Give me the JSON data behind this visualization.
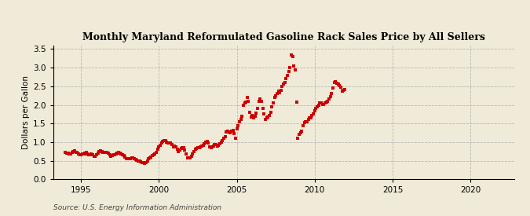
{
  "title": "Monthly Maryland Reformulated Gasoline Rack Sales Price by All Sellers",
  "ylabel": "Dollars per Gallon",
  "source": "Source: U.S. Energy Information Administration",
  "background_color": "#f0ead8",
  "plot_bg_color": "#f0ead8",
  "marker_color": "#cc0000",
  "xlim": [
    1993.2,
    2022.8
  ],
  "ylim": [
    0.0,
    3.6
  ],
  "yticks": [
    0.0,
    0.5,
    1.0,
    1.5,
    2.0,
    2.5,
    3.0,
    3.5
  ],
  "xticks": [
    1995,
    2000,
    2005,
    2010,
    2015,
    2020
  ],
  "data": [
    [
      1994.0,
      0.72
    ],
    [
      1994.083,
      0.71
    ],
    [
      1994.167,
      0.7
    ],
    [
      1994.25,
      0.68
    ],
    [
      1994.333,
      0.68
    ],
    [
      1994.417,
      0.72
    ],
    [
      1994.5,
      0.75
    ],
    [
      1994.583,
      0.76
    ],
    [
      1994.667,
      0.73
    ],
    [
      1994.75,
      0.72
    ],
    [
      1994.833,
      0.68
    ],
    [
      1994.917,
      0.66
    ],
    [
      1995.0,
      0.66
    ],
    [
      1995.083,
      0.68
    ],
    [
      1995.167,
      0.68
    ],
    [
      1995.25,
      0.7
    ],
    [
      1995.333,
      0.72
    ],
    [
      1995.417,
      0.68
    ],
    [
      1995.5,
      0.65
    ],
    [
      1995.583,
      0.67
    ],
    [
      1995.667,
      0.68
    ],
    [
      1995.75,
      0.65
    ],
    [
      1995.833,
      0.62
    ],
    [
      1995.917,
      0.62
    ],
    [
      1996.0,
      0.65
    ],
    [
      1996.083,
      0.7
    ],
    [
      1996.167,
      0.75
    ],
    [
      1996.25,
      0.77
    ],
    [
      1996.333,
      0.75
    ],
    [
      1996.417,
      0.73
    ],
    [
      1996.5,
      0.72
    ],
    [
      1996.583,
      0.73
    ],
    [
      1996.667,
      0.72
    ],
    [
      1996.75,
      0.7
    ],
    [
      1996.833,
      0.66
    ],
    [
      1996.917,
      0.62
    ],
    [
      1997.0,
      0.63
    ],
    [
      1997.083,
      0.65
    ],
    [
      1997.167,
      0.67
    ],
    [
      1997.25,
      0.68
    ],
    [
      1997.333,
      0.7
    ],
    [
      1997.417,
      0.72
    ],
    [
      1997.5,
      0.7
    ],
    [
      1997.583,
      0.68
    ],
    [
      1997.667,
      0.67
    ],
    [
      1997.75,
      0.64
    ],
    [
      1997.833,
      0.6
    ],
    [
      1997.917,
      0.56
    ],
    [
      1998.0,
      0.55
    ],
    [
      1998.083,
      0.55
    ],
    [
      1998.167,
      0.56
    ],
    [
      1998.25,
      0.57
    ],
    [
      1998.333,
      0.57
    ],
    [
      1998.417,
      0.56
    ],
    [
      1998.5,
      0.54
    ],
    [
      1998.583,
      0.52
    ],
    [
      1998.667,
      0.5
    ],
    [
      1998.75,
      0.49
    ],
    [
      1998.833,
      0.48
    ],
    [
      1998.917,
      0.45
    ],
    [
      1999.0,
      0.44
    ],
    [
      1999.083,
      0.43
    ],
    [
      1999.167,
      0.44
    ],
    [
      1999.25,
      0.5
    ],
    [
      1999.333,
      0.55
    ],
    [
      1999.417,
      0.58
    ],
    [
      1999.5,
      0.6
    ],
    [
      1999.583,
      0.63
    ],
    [
      1999.667,
      0.65
    ],
    [
      1999.75,
      0.68
    ],
    [
      1999.833,
      0.72
    ],
    [
      1999.917,
      0.8
    ],
    [
      2000.0,
      0.88
    ],
    [
      2000.083,
      0.92
    ],
    [
      2000.167,
      0.98
    ],
    [
      2000.25,
      1.02
    ],
    [
      2000.333,
      1.05
    ],
    [
      2000.417,
      1.03
    ],
    [
      2000.5,
      1.0
    ],
    [
      2000.583,
      0.97
    ],
    [
      2000.667,
      0.98
    ],
    [
      2000.75,
      0.98
    ],
    [
      2000.833,
      0.93
    ],
    [
      2000.917,
      0.88
    ],
    [
      2001.0,
      0.9
    ],
    [
      2001.083,
      0.88
    ],
    [
      2001.167,
      0.8
    ],
    [
      2001.25,
      0.75
    ],
    [
      2001.333,
      0.78
    ],
    [
      2001.417,
      0.82
    ],
    [
      2001.5,
      0.85
    ],
    [
      2001.583,
      0.85
    ],
    [
      2001.667,
      0.78
    ],
    [
      2001.75,
      0.68
    ],
    [
      2001.833,
      0.58
    ],
    [
      2001.917,
      0.57
    ],
    [
      2002.0,
      0.58
    ],
    [
      2002.083,
      0.62
    ],
    [
      2002.167,
      0.68
    ],
    [
      2002.25,
      0.75
    ],
    [
      2002.333,
      0.8
    ],
    [
      2002.417,
      0.82
    ],
    [
      2002.5,
      0.84
    ],
    [
      2002.583,
      0.86
    ],
    [
      2002.667,
      0.88
    ],
    [
      2002.75,
      0.9
    ],
    [
      2002.833,
      0.92
    ],
    [
      2002.917,
      0.95
    ],
    [
      2003.0,
      1.0
    ],
    [
      2003.083,
      1.02
    ],
    [
      2003.167,
      0.98
    ],
    [
      2003.25,
      0.88
    ],
    [
      2003.333,
      0.85
    ],
    [
      2003.417,
      0.88
    ],
    [
      2003.5,
      0.9
    ],
    [
      2003.583,
      0.93
    ],
    [
      2003.667,
      0.93
    ],
    [
      2003.75,
      0.9
    ],
    [
      2003.833,
      0.92
    ],
    [
      2003.917,
      0.95
    ],
    [
      2004.0,
      1.0
    ],
    [
      2004.083,
      1.05
    ],
    [
      2004.167,
      1.1
    ],
    [
      2004.25,
      1.15
    ],
    [
      2004.333,
      1.28
    ],
    [
      2004.417,
      1.3
    ],
    [
      2004.5,
      1.28
    ],
    [
      2004.583,
      1.25
    ],
    [
      2004.667,
      1.3
    ],
    [
      2004.75,
      1.32
    ],
    [
      2004.833,
      1.22
    ],
    [
      2004.917,
      1.1
    ],
    [
      2005.0,
      1.35
    ],
    [
      2005.083,
      1.45
    ],
    [
      2005.167,
      1.55
    ],
    [
      2005.25,
      1.62
    ],
    [
      2005.333,
      1.7
    ],
    [
      2005.417,
      2.0
    ],
    [
      2005.5,
      2.05
    ],
    [
      2005.583,
      2.08
    ],
    [
      2005.667,
      2.2
    ],
    [
      2005.75,
      2.1
    ],
    [
      2005.833,
      1.8
    ],
    [
      2005.917,
      1.68
    ],
    [
      2006.0,
      1.72
    ],
    [
      2006.083,
      1.65
    ],
    [
      2006.167,
      1.7
    ],
    [
      2006.25,
      1.78
    ],
    [
      2006.333,
      1.9
    ],
    [
      2006.417,
      2.1
    ],
    [
      2006.5,
      2.15
    ],
    [
      2006.583,
      2.1
    ],
    [
      2006.667,
      1.9
    ],
    [
      2006.75,
      1.75
    ],
    [
      2006.833,
      1.62
    ],
    [
      2006.917,
      1.65
    ],
    [
      2007.0,
      1.68
    ],
    [
      2007.083,
      1.72
    ],
    [
      2007.167,
      1.8
    ],
    [
      2007.25,
      1.95
    ],
    [
      2007.333,
      2.05
    ],
    [
      2007.417,
      2.2
    ],
    [
      2007.5,
      2.25
    ],
    [
      2007.583,
      2.3
    ],
    [
      2007.667,
      2.38
    ],
    [
      2007.75,
      2.32
    ],
    [
      2007.833,
      2.4
    ],
    [
      2007.917,
      2.5
    ],
    [
      2008.0,
      2.55
    ],
    [
      2008.083,
      2.6
    ],
    [
      2008.167,
      2.7
    ],
    [
      2008.25,
      2.8
    ],
    [
      2008.333,
      2.9
    ],
    [
      2008.417,
      3.0
    ],
    [
      2008.5,
      3.35
    ],
    [
      2008.583,
      3.3
    ],
    [
      2008.667,
      3.05
    ],
    [
      2008.75,
      2.95
    ],
    [
      2008.833,
      2.08
    ],
    [
      2008.917,
      1.1
    ],
    [
      2009.0,
      1.2
    ],
    [
      2009.083,
      1.25
    ],
    [
      2009.167,
      1.3
    ],
    [
      2009.25,
      1.45
    ],
    [
      2009.333,
      1.52
    ],
    [
      2009.417,
      1.55
    ],
    [
      2009.5,
      1.55
    ],
    [
      2009.583,
      1.6
    ],
    [
      2009.667,
      1.65
    ],
    [
      2009.75,
      1.65
    ],
    [
      2009.833,
      1.72
    ],
    [
      2009.917,
      1.75
    ],
    [
      2010.0,
      1.85
    ],
    [
      2010.083,
      1.9
    ],
    [
      2010.167,
      1.95
    ],
    [
      2010.25,
      2.0
    ],
    [
      2010.333,
      2.05
    ],
    [
      2010.417,
      2.05
    ],
    [
      2010.5,
      2.02
    ],
    [
      2010.583,
      2.02
    ],
    [
      2010.667,
      2.05
    ],
    [
      2010.75,
      2.08
    ],
    [
      2010.833,
      2.1
    ],
    [
      2010.917,
      2.15
    ],
    [
      2011.0,
      2.22
    ],
    [
      2011.083,
      2.3
    ],
    [
      2011.167,
      2.45
    ],
    [
      2011.25,
      2.6
    ],
    [
      2011.333,
      2.62
    ],
    [
      2011.417,
      2.58
    ],
    [
      2011.5,
      2.55
    ],
    [
      2011.583,
      2.52
    ],
    [
      2011.667,
      2.48
    ],
    [
      2011.75,
      2.38
    ],
    [
      2011.833,
      2.4
    ],
    [
      2011.917,
      2.42
    ]
  ]
}
